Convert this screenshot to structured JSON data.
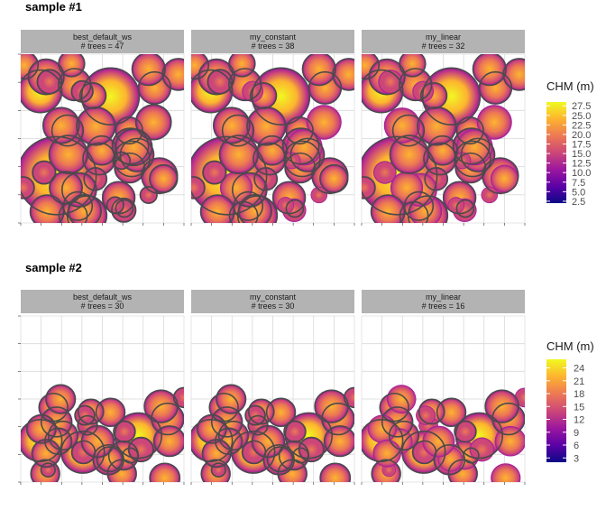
{
  "chart_data": [
    {
      "type": "heatmap",
      "title": "sample #1",
      "legend": {
        "title": "CHM (m)",
        "ticks": [
          2.5,
          5.0,
          7.5,
          10.0,
          12.5,
          15.0,
          17.5,
          20.0,
          22.5,
          25.0,
          27.5
        ],
        "tick_labels": [
          "2.5",
          "5.0",
          "7.5",
          "10.0",
          "12.5",
          "15.0",
          "17.5",
          "20.0",
          "22.5",
          "25.0",
          "27.5"
        ],
        "range": [
          2,
          28.5
        ],
        "placement": "right"
      },
      "colormap": "plasma",
      "panels": [
        {
          "method": "best_default_ws",
          "trees_label": "# trees = 47",
          "trees": 47
        },
        {
          "method": "my_constant",
          "trees_label": "# trees = 38",
          "trees": 38
        },
        {
          "method": "my_linear",
          "trees_label": "# trees = 32",
          "trees": 32
        }
      ],
      "grid": true
    },
    {
      "type": "heatmap",
      "title": "sample #2",
      "legend": {
        "title": "CHM (m)",
        "ticks": [
          3,
          6,
          9,
          12,
          15,
          18,
          21,
          24
        ],
        "tick_labels": [
          "3",
          "6",
          "9",
          "12",
          "15",
          "18",
          "21",
          "24"
        ],
        "range": [
          2,
          26
        ],
        "placement": "right"
      },
      "colormap": "plasma",
      "panels": [
        {
          "method": "best_default_ws",
          "trees_label": "# trees = 30",
          "trees": 30
        },
        {
          "method": "my_constant",
          "trees_label": "# trees = 30",
          "trees": 30
        },
        {
          "method": "my_linear",
          "trees_label": "# trees = 16",
          "trees": 16
        }
      ],
      "grid": true
    }
  ],
  "colors": {
    "strip_background": "#b3b3b3",
    "grid": "#d9d9d9",
    "crown_outline": "#4a4a4a",
    "colormap_stops": [
      "#0d0887",
      "#5c01a6",
      "#9c179e",
      "#cc4778",
      "#ed7953",
      "#fdb42f",
      "#f0f921"
    ]
  }
}
